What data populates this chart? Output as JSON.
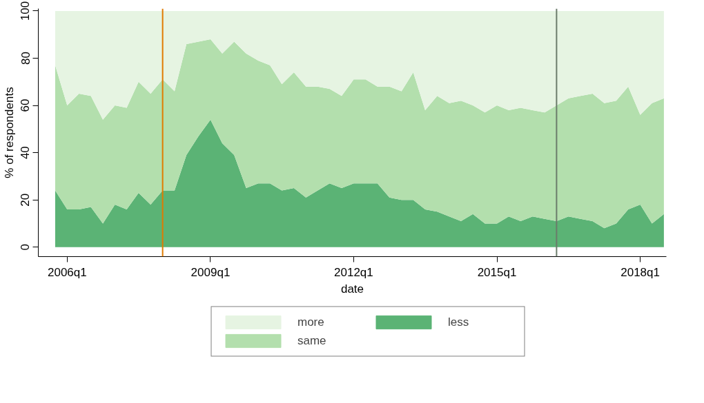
{
  "chart_data": {
    "type": "area",
    "stacked": true,
    "xlabel": "date",
    "ylabel": "% of respondents",
    "x": [
      "2005-10",
      "2006-01",
      "2006-04",
      "2006-07",
      "2006-10",
      "2007-01",
      "2007-04",
      "2007-07",
      "2007-10",
      "2008-01",
      "2008-04",
      "2008-07",
      "2008-10",
      "2009-01",
      "2009-04",
      "2009-07",
      "2009-10",
      "2010-01",
      "2010-04",
      "2010-07",
      "2010-10",
      "2011-01",
      "2011-04",
      "2011-07",
      "2011-10",
      "2012-01",
      "2012-04",
      "2012-07",
      "2012-10",
      "2013-01",
      "2013-04",
      "2013-07",
      "2013-10",
      "2014-01",
      "2014-04",
      "2014-07",
      "2014-10",
      "2015-01",
      "2015-04",
      "2015-07",
      "2015-10",
      "2016-01",
      "2016-04",
      "2016-07",
      "2016-10",
      "2017-01",
      "2017-04",
      "2017-07",
      "2017-10",
      "2018-01",
      "2018-04",
      "2018-07"
    ],
    "series": [
      {
        "name": "less",
        "color": "#5bb375",
        "values": [
          24,
          16,
          16,
          17,
          10,
          18,
          16,
          23,
          18,
          24,
          24,
          39,
          47,
          54,
          44,
          39,
          25,
          27,
          27,
          24,
          25,
          21,
          24,
          27,
          25,
          27,
          27,
          27,
          21,
          20,
          20,
          16,
          15,
          13,
          11,
          14,
          10,
          10,
          13,
          11,
          13,
          12,
          11,
          13,
          12,
          11,
          8,
          10,
          16,
          18,
          10,
          14
        ]
      },
      {
        "name": "same",
        "color": "#b3dfad",
        "values": [
          53,
          44,
          49,
          47,
          44,
          42,
          43,
          47,
          47,
          47,
          42,
          47,
          40,
          34,
          38,
          48,
          57,
          52,
          50,
          45,
          49,
          47,
          44,
          40,
          39,
          44,
          44,
          41,
          47,
          46,
          54,
          42,
          49,
          48,
          51,
          46,
          47,
          50,
          45,
          48,
          45,
          45,
          49,
          50,
          52,
          54,
          53,
          52,
          52,
          38,
          51,
          49
        ]
      },
      {
        "name": "more",
        "color": "#e6f4e2",
        "values": [
          23,
          40,
          35,
          36,
          46,
          40,
          41,
          30,
          35,
          29,
          34,
          14,
          13,
          12,
          18,
          13,
          18,
          21,
          23,
          31,
          26,
          32,
          32,
          33,
          36,
          29,
          29,
          32,
          32,
          34,
          26,
          42,
          36,
          39,
          38,
          40,
          43,
          40,
          42,
          41,
          42,
          43,
          40,
          37,
          36,
          35,
          39,
          38,
          32,
          44,
          39,
          37
        ]
      }
    ],
    "xlim": [
      "2005-05-25",
      "2018-07-20"
    ],
    "xticks": [
      {
        "value": "2006-01",
        "label": "2006q1"
      },
      {
        "value": "2009-01",
        "label": "2009q1"
      },
      {
        "value": "2012-01",
        "label": "2012q1"
      },
      {
        "value": "2015-01",
        "label": "2015q1"
      },
      {
        "value": "2018-01",
        "label": "2018q1"
      }
    ],
    "ylim": [
      -4,
      101
    ],
    "yticks": [
      0,
      20,
      40,
      60,
      80,
      100
    ],
    "ref_lines": [
      {
        "axis": "x",
        "value": "2008-01",
        "color": "#e07b00"
      },
      {
        "axis": "x",
        "value": "2016-04",
        "color": "#6b7b6b"
      }
    ],
    "legend": "bottom"
  }
}
